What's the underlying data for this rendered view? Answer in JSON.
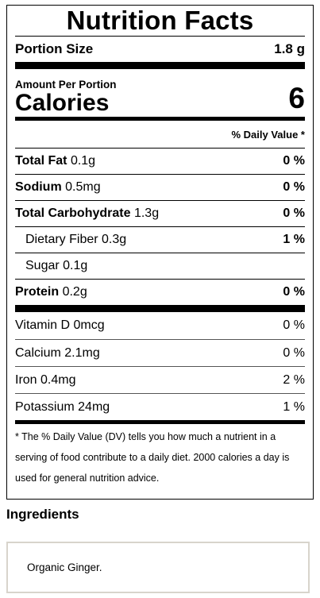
{
  "label": {
    "title": "Nutrition Facts",
    "portion_label": "Portion Size",
    "portion_value": "1.8 g",
    "amount_per": "Amount Per Portion",
    "calories_label": "Calories",
    "calories_value": "6",
    "dv_header": "% Daily Value *",
    "nutrients": [
      {
        "name": "Total Fat",
        "amount": "0.1g",
        "pct": "0 %"
      },
      {
        "name": "Sodium",
        "amount": "0.5mg",
        "pct": "0 %"
      },
      {
        "name": "Total Carbohydrate",
        "amount": "1.3g",
        "pct": "0 %"
      },
      {
        "name": "Dietary Fiber",
        "amount": "0.3g",
        "pct": "1 %"
      },
      {
        "name": "Sugar",
        "amount": "0.1g",
        "pct": ""
      },
      {
        "name": "Protein",
        "amount": "0.2g",
        "pct": "0 %"
      }
    ],
    "vitamins": [
      {
        "name": "Vitamin D",
        "amount": "0mcg",
        "pct": "0 %"
      },
      {
        "name": "Calcium",
        "amount": "2.1mg",
        "pct": "0 %"
      },
      {
        "name": "Iron",
        "amount": "0.4mg",
        "pct": "2 %"
      },
      {
        "name": "Potassium",
        "amount": "24mg",
        "pct": "1 %"
      }
    ],
    "footnote": "* The % Daily Value (DV) tells you how much a nutrient in a serving of food contribute to a daily diet. 2000 calories a day is used for general nutrition advice."
  },
  "ingredients": {
    "heading": "Ingredients",
    "text": "Organic Ginger."
  }
}
